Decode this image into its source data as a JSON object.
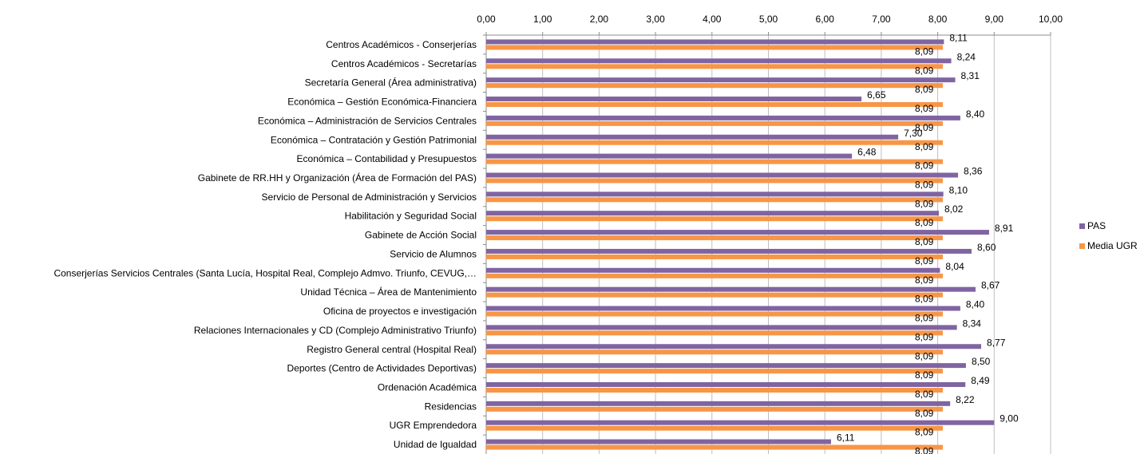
{
  "chart_data": {
    "type": "bar",
    "orientation": "horizontal",
    "categories": [
      "Centros Académicos - Conserjerías",
      "Centros Académicos - Secretarías",
      "Secretaría General (Área administrativa)",
      "Económica – Gestión Económica-Financiera",
      "Económica – Administración de Servicios Centrales",
      "Económica – Contratación y Gestión Patrimonial",
      "Económica – Contabilidad y Presupuestos",
      "Gabinete de RR.HH y Organización (Área de Formación del PAS)",
      "Servicio de Personal de Administración y Servicios",
      "Habilitación y Seguridad Social",
      "Gabinete de Acción Social",
      "Servicio de Alumnos",
      "Conserjerías Servicios Centrales (Santa Lucía, Hospital Real, Complejo Admvo. Triunfo, CEVUG,…",
      "Unidad Técnica – Área de Mantenimiento",
      "Oficina de proyectos e investigación",
      "Relaciones Internacionales y CD (Complejo Administrativo Triunfo)",
      "Registro General central (Hospital Real)",
      "Deportes (Centro de Actividades Deportivas)",
      "Ordenación Académica",
      "Residencias",
      "UGR Emprendedora",
      "Unidad de Igualdad"
    ],
    "series": [
      {
        "name": "PAS",
        "color": "#8064a2",
        "values": [
          8.11,
          8.24,
          8.31,
          6.65,
          8.4,
          7.3,
          6.48,
          8.36,
          8.1,
          8.02,
          8.91,
          8.6,
          8.04,
          8.67,
          8.4,
          8.34,
          8.77,
          8.5,
          8.49,
          8.22,
          9.0,
          6.11
        ],
        "labels": [
          "8,11",
          "8,24",
          "8,31",
          "6,65",
          "8,40",
          "7,30",
          "6,48",
          "8,36",
          "8,10",
          "8,02",
          "8,91",
          "8,60",
          "8,04",
          "8,67",
          "8,40",
          "8,34",
          "8,77",
          "8,50",
          "8,49",
          "8,22",
          "9,00",
          "6,11"
        ]
      },
      {
        "name": "Media UGR",
        "color": "#f79646",
        "values": [
          8.09,
          8.09,
          8.09,
          8.09,
          8.09,
          8.09,
          8.09,
          8.09,
          8.09,
          8.09,
          8.09,
          8.09,
          8.09,
          8.09,
          8.09,
          8.09,
          8.09,
          8.09,
          8.09,
          8.09,
          8.09,
          8.09
        ],
        "labels": [
          "8,09",
          "8,09",
          "8,09",
          "8,09",
          "8,09",
          "8,09",
          "8,09",
          "8,09",
          "8,09",
          "8,09",
          "8,09",
          "8,09",
          "8,09",
          "8,09",
          "8,09",
          "8,09",
          "8,09",
          "8,09",
          "8,09",
          "8,09",
          "8,09",
          "8,09"
        ]
      }
    ],
    "xlim": [
      0,
      10
    ],
    "x_ticks": [
      0,
      1,
      2,
      3,
      4,
      5,
      6,
      7,
      8,
      9,
      10
    ],
    "x_tick_labels": [
      "0,00",
      "1,00",
      "2,00",
      "3,00",
      "4,00",
      "5,00",
      "6,00",
      "7,00",
      "8,00",
      "9,00",
      "10,00"
    ],
    "x_axis_position": "top",
    "grid": true,
    "legend_position": "right"
  }
}
